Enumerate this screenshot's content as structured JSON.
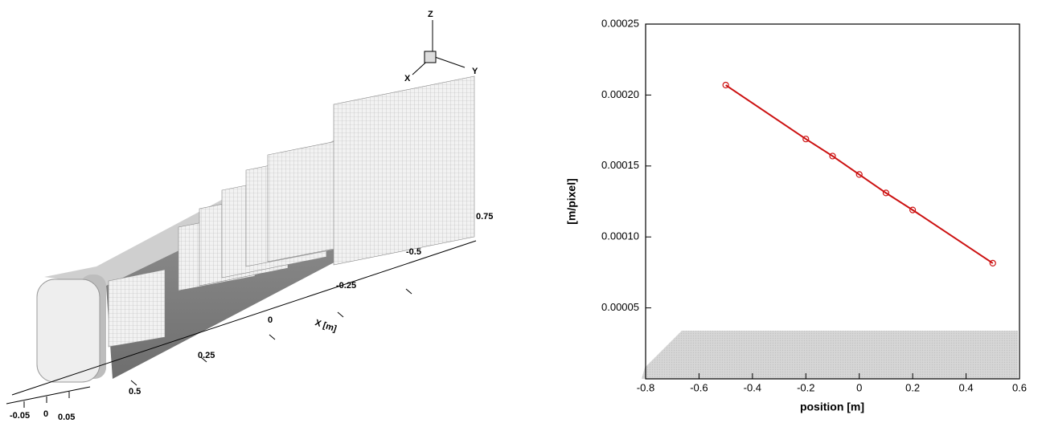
{
  "illustration": {
    "labels": [
      "Z",
      "X",
      "Y",
      "0.75",
      "-0.5",
      "-0.25",
      "0",
      "X [m]",
      "0.25",
      "0.5",
      "-0.05",
      "0",
      "0.05"
    ]
  },
  "chart_data": {
    "type": "line",
    "x_label": "position [m]",
    "y_label": "[m/pixel]",
    "series": [
      {
        "color": "#cc1111",
        "x": [
          -0.5,
          -0.2,
          -0.1,
          0,
          0.1,
          0.2,
          0.5
        ],
        "values": [
          0.000207,
          0.000169,
          0.000157,
          0.000144,
          0.000131,
          0.000119,
          8.15e-05
        ]
      }
    ],
    "xlim": [
      -0.8,
      0.6
    ],
    "xticks": [
      -0.8,
      -0.6,
      -0.4,
      -0.2,
      0,
      0.2,
      0.4,
      0.6
    ],
    "ylim": [
      0,
      0.00025
    ],
    "yticks": [
      5e-05,
      {
        "value": 0.0001,
        "label": "0.00010"
      },
      0.00015,
      {
        "value": 0.0002,
        "label": "0.00020"
      },
      0.00025
    ]
  }
}
